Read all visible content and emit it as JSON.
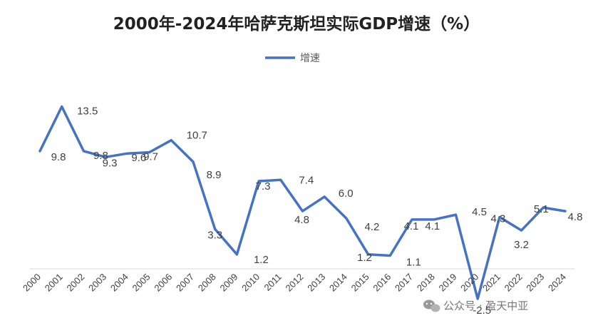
{
  "chart_data": {
    "type": "line",
    "title": "2000年-2024年哈萨克斯坦实际GDP增速（%）",
    "legend": "增速",
    "legend_position": "top",
    "categories": [
      "2000",
      "2001",
      "2002",
      "2003",
      "2004",
      "2005",
      "2006",
      "2007",
      "2008",
      "2009",
      "2010",
      "2011",
      "2012",
      "2013",
      "2014",
      "2015",
      "2016",
      "2017",
      "2018",
      "2019",
      "2020",
      "2021",
      "2022",
      "2023",
      "2024"
    ],
    "series": [
      {
        "name": "增速",
        "color": "#4472C4",
        "values": [
          9.8,
          13.5,
          9.8,
          9.3,
          9.6,
          9.7,
          10.7,
          8.9,
          3.3,
          1.2,
          7.3,
          7.4,
          4.8,
          6.0,
          4.2,
          1.2,
          1.1,
          4.1,
          4.1,
          4.5,
          -2.5,
          4.3,
          3.2,
          5.1,
          4.8
        ],
        "labels": [
          "9.8",
          "13.5",
          "9.8",
          "9.3",
          "9.6",
          "9.7",
          "10.7",
          "8.9",
          "3.3",
          "1.2",
          "7.3",
          "7.4",
          "4.8",
          "6.0",
          "4.2",
          "1.2",
          "1.1",
          "4.1",
          "4.1",
          "4.5",
          "-2.5",
          "4.3",
          "3.2",
          "5.1",
          "4.8"
        ]
      }
    ],
    "ylim": [
      -4,
      16
    ],
    "grid": false
  },
  "watermark": "公众号 · 盈天中亚"
}
